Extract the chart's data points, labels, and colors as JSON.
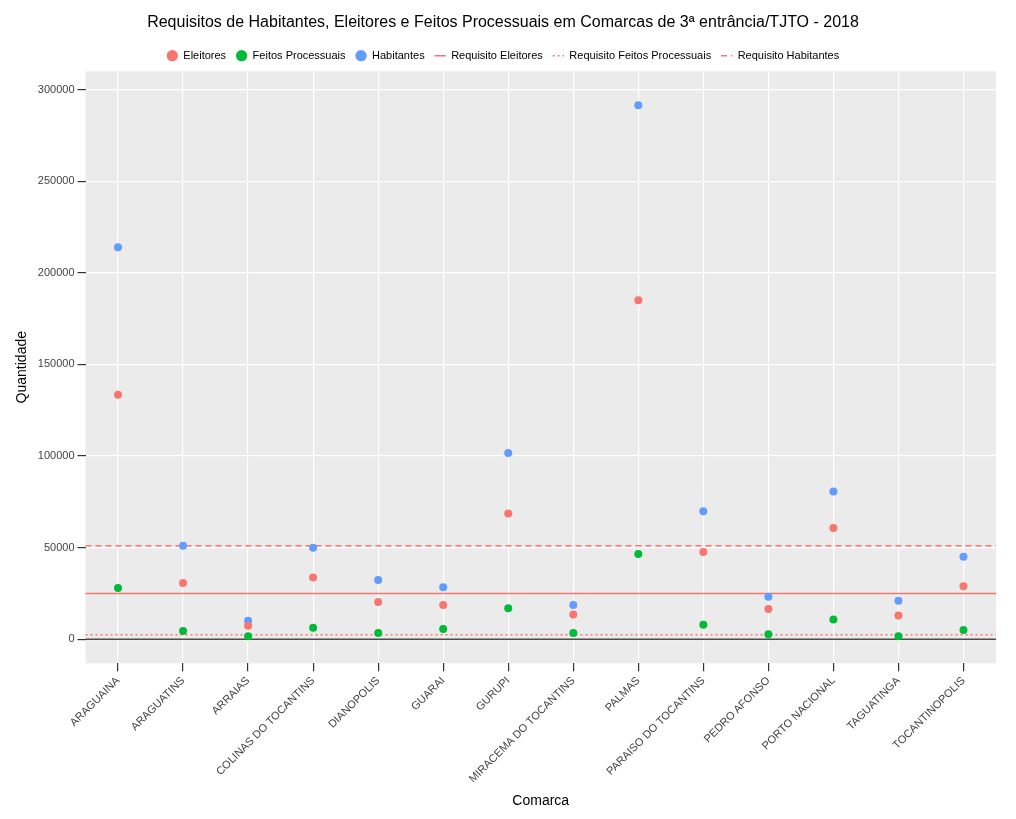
{
  "chart_data": {
    "type": "scatter",
    "title": "Requisitos de Habitantes, Eleitores e Feitos Processuais em Comarcas de 3ª entrância/TJTO - 2018",
    "xlabel": "Comarca",
    "ylabel": "Quantidade",
    "categories": [
      "ARAGUAINA",
      "ARAGUATINS",
      "ARRAIAS",
      "COLINAS DO TOCANTINS",
      "DIANOPOLIS",
      "GUARAI",
      "GURUPI",
      "MIRACEMA DO TOCANTINS",
      "PALMAS",
      "PARAISO DO TOCANTINS",
      "PEDRO AFONSO",
      "PORTO NACIONAL",
      "TAGUATINGA",
      "TOCANTINOPOLIS"
    ],
    "series": [
      {
        "name": "Eleitores",
        "color": "#f8766d",
        "values": [
          133500,
          30700,
          7400,
          33800,
          20400,
          18700,
          68700,
          13600,
          185000,
          47700,
          16500,
          60800,
          13000,
          29000
        ]
      },
      {
        "name": "Feitos Processuais",
        "color": "#00ba38",
        "values": [
          28000,
          4500,
          1700,
          6300,
          3400,
          5700,
          17000,
          3400,
          46600,
          8000,
          2800,
          10800,
          1700,
          5100
        ]
      },
      {
        "name": "Habitantes",
        "color": "#619cff",
        "values": [
          214000,
          51000,
          10200,
          50000,
          32400,
          28400,
          101700,
          18700,
          291400,
          69900,
          23300,
          80700,
          21000,
          45000
        ]
      }
    ],
    "ref_lines": [
      {
        "axis": "y",
        "value": 25000,
        "label": "Requisito Eleitores",
        "color": "#f8766d",
        "line_style": "solid"
      },
      {
        "axis": "y",
        "value": 2500,
        "label": "Requisito Feitos Processuais",
        "color": "#f8766d",
        "line_style": "dotted"
      },
      {
        "axis": "y",
        "value": 51000,
        "label": "Requisito Habitantes",
        "color": "#f8766d",
        "line_style": "dashed"
      },
      {
        "axis": "y",
        "value": 0,
        "color": "#4d4d4d",
        "line_style": "solid"
      }
    ],
    "ylim": [
      -13000,
      310000
    ],
    "yticks": [
      0,
      50000,
      100000,
      150000,
      200000,
      250000,
      300000
    ],
    "grid": true,
    "legend": "top",
    "marker": "circle"
  }
}
